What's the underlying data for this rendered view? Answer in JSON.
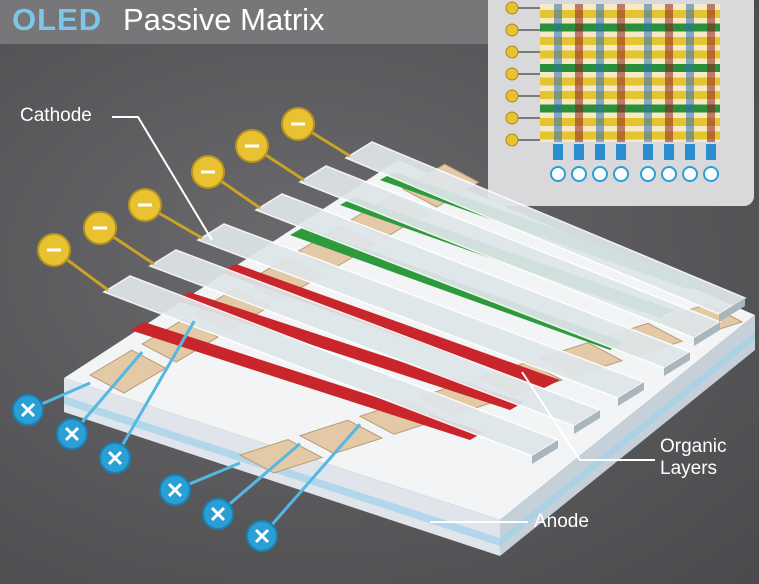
{
  "title": {
    "prefix": "OLED",
    "rest": "Passive Matrix"
  },
  "labels": {
    "cathode": "Cathode",
    "organic_line1": "Organic",
    "organic_line2": "Layers",
    "anode": "Anode"
  },
  "colors": {
    "background": "#5b5b5d",
    "header": "#777779",
    "title_accent": "#7cc7e8",
    "cathode_strip": "#dfe6ea",
    "red_layer": "#c8262b",
    "green_layer": "#2e9a3c",
    "anode_pad": "#e3c9a6",
    "substrate": "#f2f4f6",
    "negative_terminal": "#e8c230",
    "positive_terminal": "#2a9fd6"
  },
  "icons": {
    "negative": "minus-terminal-icon",
    "positive": "plus-terminal-icon"
  }
}
